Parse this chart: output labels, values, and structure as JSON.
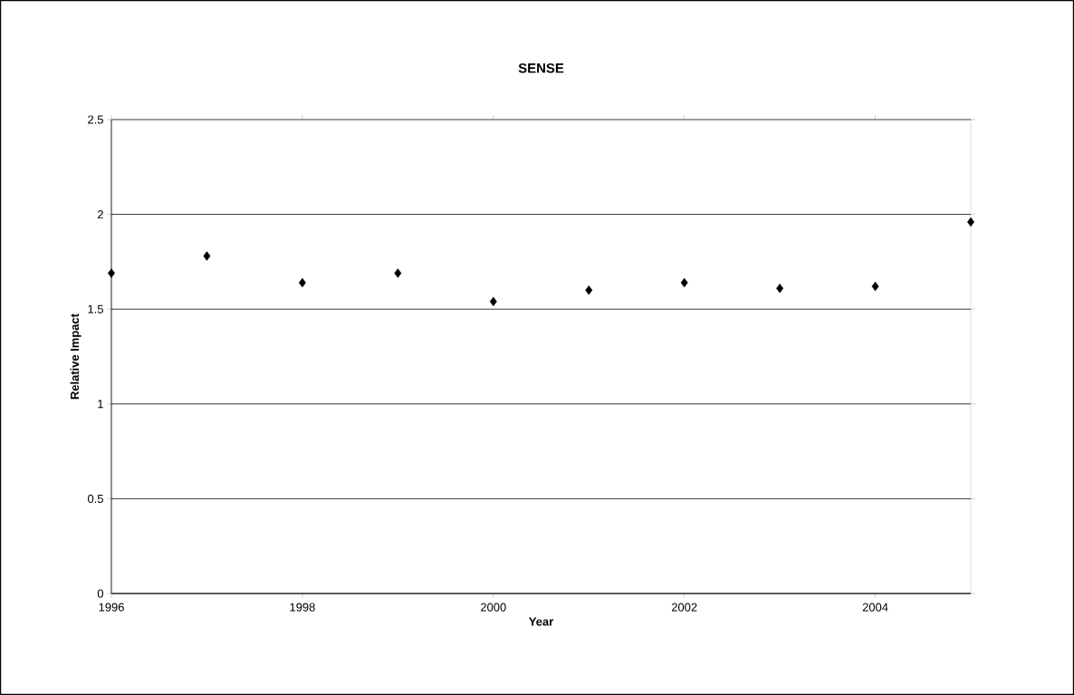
{
  "chart_data": {
    "type": "scatter",
    "title": "SENSE",
    "xlabel": "Year",
    "ylabel": "Relative Impact",
    "x": [
      1996,
      1997,
      1998,
      1999,
      2000,
      2001,
      2002,
      2003,
      2004,
      2005
    ],
    "values": [
      1.69,
      1.78,
      1.64,
      1.69,
      1.54,
      1.6,
      1.64,
      1.61,
      1.62,
      1.96
    ],
    "color": "#000000",
    "marker": "diamond",
    "xlim": [
      1996,
      2005
    ],
    "xticks": [
      1996,
      1998,
      2000,
      2002,
      2004
    ],
    "ylim": [
      0,
      2.5
    ],
    "yticks": [
      0,
      0.5,
      1,
      1.5,
      2,
      2.5
    ],
    "grid": "y"
  }
}
